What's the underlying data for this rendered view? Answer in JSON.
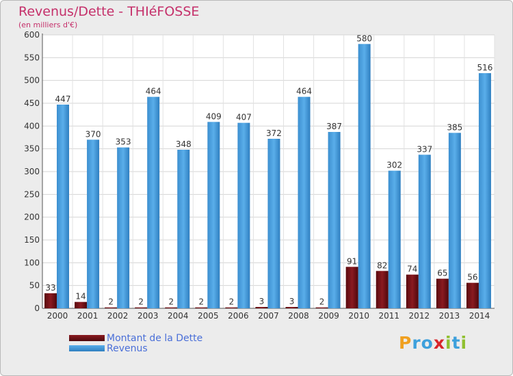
{
  "colors": {
    "dette": "#6e0f14",
    "revenus": "#4ea3e4"
  },
  "chart_data": {
    "type": "bar",
    "title": "Revenus/Dette - THIéFOSSE",
    "subtitle": "(en milliers d'€)",
    "categories": [
      "2000",
      "2001",
      "2002",
      "2003",
      "2004",
      "2005",
      "2006",
      "2007",
      "2008",
      "2009",
      "2010",
      "2011",
      "2012",
      "2013",
      "2014"
    ],
    "series": [
      {
        "name": "Montant de la Dette",
        "values": [
          33,
          14,
          2,
          2,
          2,
          2,
          2,
          3,
          3,
          2,
          91,
          82,
          74,
          65,
          56
        ]
      },
      {
        "name": "Revenus",
        "values": [
          447,
          370,
          353,
          464,
          348,
          409,
          407,
          372,
          464,
          387,
          580,
          302,
          337,
          385,
          516
        ]
      }
    ],
    "ylim": [
      0,
      600
    ],
    "yticks": [
      0,
      50,
      100,
      150,
      200,
      250,
      300,
      350,
      400,
      450,
      500,
      550,
      600
    ],
    "grid": true,
    "legend": "bottom-left"
  },
  "logo": {
    "letters": [
      "P",
      "r",
      "o",
      "x",
      "i",
      "t",
      "i"
    ],
    "colors": [
      "#f0a020",
      "#3da0dc",
      "#3da0dc",
      "#d8262c",
      "#90c030",
      "#3da0dc",
      "#90c030"
    ]
  }
}
